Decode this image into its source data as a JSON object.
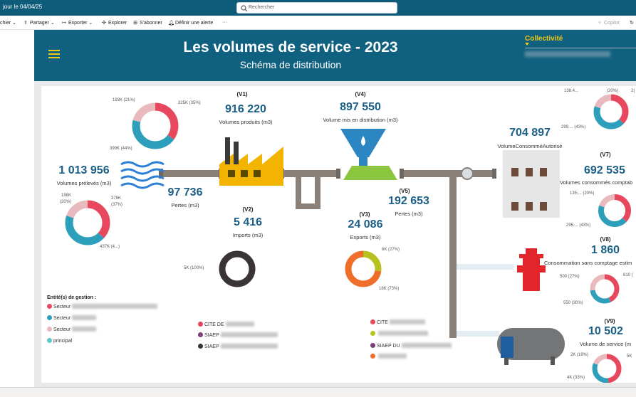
{
  "topbar": {
    "updated": "jour le 04/04/25",
    "search_placeholder": "Rechercher"
  },
  "toolbar": {
    "file": "chier",
    "share": "Partager",
    "export": "Exporter",
    "explore": "Explorer",
    "subscribe": "S'abonner",
    "alert": "Définir une alerte",
    "more": "···",
    "copilot": "Copilot"
  },
  "header": {
    "title": "Les volumes de service - 2023",
    "subtitle": "Schéma de distribution",
    "filter_label": "Collectivité"
  },
  "nodes": {
    "v1": {
      "label": "(V1)",
      "value": "916 220",
      "caption": "Volumes produits (m3)"
    },
    "v4": {
      "label": "(V4)",
      "value": "897 550",
      "caption": "Volume mis en distribution (m3)"
    },
    "prel": {
      "value": "1 013 956",
      "caption": "Volumes prélevés (m3)"
    },
    "pertes1": {
      "value": "97 736",
      "caption": "Pertes (m3)"
    },
    "v2": {
      "label": "(V2)",
      "value": "5 416",
      "caption": "Imports (m3)"
    },
    "v5": {
      "label": "(V5)",
      "value": "192 653",
      "caption": "Pertes (m3)"
    },
    "v3": {
      "label": "(V3)",
      "value": "24 086",
      "caption": "Exports (m3)"
    },
    "v6": {
      "value": "704 897",
      "caption": "VolumeConsomméAutorisé"
    },
    "v7": {
      "label": "(V7)",
      "value": "692 535",
      "caption": "Volumes consommés comptab"
    },
    "v8": {
      "label": "(V8)",
      "value": "1 860",
      "caption": "Consommation sans comptage estim"
    },
    "v9": {
      "label": "(V9)",
      "value": "10 502",
      "caption": "Volume de service (m"
    }
  },
  "donut_labels": {
    "d1": [
      "193K (21%)",
      "325K (35%)",
      "399K (44%)"
    ],
    "d2": [
      "198K",
      "(20%)",
      "379K",
      "(37%)",
      "437K (4...)"
    ],
    "d3": [
      "5K (100%)"
    ],
    "d4": [
      "6K (27%)",
      "18K (73%)"
    ],
    "d5": [
      "138.4...",
      "2(",
      "(20%)",
      "299.... (43%)"
    ],
    "d6": [
      "135,... (20%)",
      "295.... (43%)"
    ],
    "d7": [
      "500 (27%)",
      "810 (",
      "550 (30%)"
    ],
    "d8": [
      "2K (19%)",
      "5K",
      "4K (33%)"
    ]
  },
  "legend": {
    "title": "Entité(s) de gestion :",
    "left": [
      "Secteur",
      "Secteur",
      "Secteur",
      "principal"
    ],
    "mid": [
      "CITE DE",
      "SIAEP",
      "SIAEP"
    ],
    "right": [
      "CITE",
      "",
      "SIAEP DU",
      ""
    ]
  },
  "colors": {
    "pink": "#e8485e",
    "teal": "#2e9fba",
    "lightpink": "#e8b9bd",
    "cyan": "#5ec8c8",
    "olive": "#b7c21e",
    "orange": "#ef6f2a",
    "purple": "#7b3f7b",
    "dark": "#3a3434",
    "header": "#10607f",
    "pipe": "#8a8078",
    "value": "#1a5f86"
  }
}
